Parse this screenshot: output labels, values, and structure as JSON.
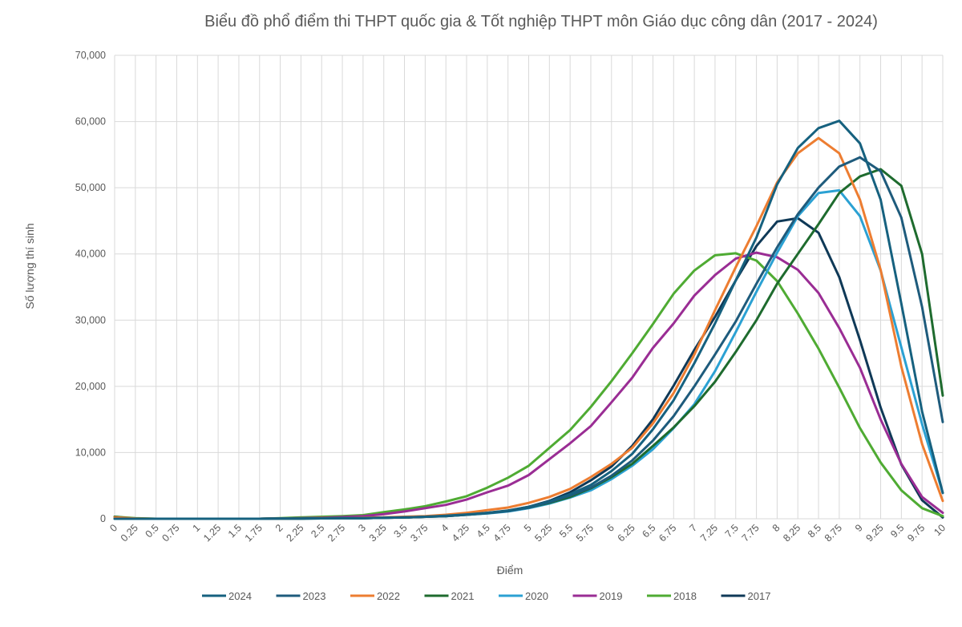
{
  "chart_data": {
    "type": "line",
    "title": "Biểu đồ phổ điểm thi THPT quốc gia & Tốt nghiệp THPT môn Giáo dục công dân (2017 - 2024)",
    "xlabel": "Điểm",
    "ylabel": "Số lượng thí sinh",
    "ylim": [
      0,
      70000
    ],
    "y_ticks": [
      0,
      10000,
      20000,
      30000,
      40000,
      50000,
      60000,
      70000
    ],
    "y_tick_labels": [
      "0",
      "10,000",
      "20,000",
      "30,000",
      "40,000",
      "50,000",
      "60,000",
      "70,000"
    ],
    "grid": true,
    "legend_position": "bottom",
    "categories": [
      "0",
      "0.25",
      "0.5",
      "0.75",
      "1",
      "1.25",
      "1.5",
      "1.75",
      "2",
      "2.25",
      "2.5",
      "2.75",
      "3",
      "3.25",
      "3.5",
      "3.75",
      "4",
      "4.25",
      "4.5",
      "4.75",
      "5",
      "5.25",
      "5.5",
      "5.75",
      "6",
      "6.25",
      "6.5",
      "6.75",
      "7",
      "7.25",
      "7.5",
      "7.75",
      "8",
      "8.25",
      "8.5",
      "8.75",
      "9",
      "9.25",
      "9.5",
      "9.75",
      "10"
    ],
    "series": [
      {
        "name": "2024",
        "color": "#16617f",
        "values": [
          0,
          0,
          0,
          0,
          0,
          0,
          0,
          0,
          20,
          40,
          60,
          80,
          100,
          150,
          200,
          300,
          450,
          650,
          900,
          1200,
          1800,
          2600,
          3700,
          5100,
          7200,
          9800,
          13500,
          17900,
          23500,
          29500,
          36000,
          42500,
          50500,
          56000,
          59000,
          60100,
          56700,
          48200,
          32500,
          16200,
          3900
        ]
      },
      {
        "name": "2023",
        "color": "#1e5b7c",
        "values": [
          0,
          0,
          0,
          0,
          0,
          0,
          0,
          0,
          20,
          40,
          60,
          80,
          100,
          150,
          200,
          300,
          400,
          600,
          850,
          1150,
          1700,
          2500,
          3500,
          4700,
          6500,
          8800,
          11800,
          15500,
          20000,
          24800,
          29800,
          35500,
          41000,
          46000,
          50000,
          53200,
          54600,
          52500,
          45500,
          32000,
          14600
        ]
      },
      {
        "name": "2022",
        "color": "#ed7d31",
        "values": [
          200,
          50,
          0,
          0,
          0,
          0,
          0,
          0,
          20,
          50,
          80,
          100,
          150,
          200,
          300,
          400,
          600,
          900,
          1300,
          1700,
          2400,
          3300,
          4500,
          6300,
          8300,
          10700,
          14400,
          19000,
          24800,
          31500,
          38000,
          44200,
          50800,
          55200,
          57500,
          55200,
          48200,
          37600,
          23000,
          11300,
          2700
        ]
      },
      {
        "name": "2021",
        "color": "#1e6b2e",
        "values": [
          300,
          0,
          0,
          0,
          0,
          0,
          0,
          0,
          20,
          40,
          60,
          80,
          100,
          150,
          200,
          300,
          400,
          600,
          850,
          1200,
          1700,
          2400,
          3300,
          4600,
          6300,
          8300,
          11000,
          13800,
          17000,
          20700,
          25200,
          30000,
          35500,
          40000,
          44500,
          49200,
          51700,
          52800,
          50300,
          40000,
          18600
        ]
      },
      {
        "name": "2020",
        "color": "#2ba1d3",
        "values": [
          200,
          0,
          0,
          0,
          0,
          0,
          0,
          0,
          20,
          40,
          60,
          80,
          100,
          150,
          200,
          300,
          400,
          600,
          800,
          1100,
          1600,
          2300,
          3200,
          4300,
          6000,
          8000,
          10500,
          13700,
          17300,
          22300,
          28200,
          34300,
          40200,
          45700,
          49200,
          49600,
          45700,
          37500,
          25900,
          14300,
          3900
        ]
      },
      {
        "name": "2019",
        "color": "#9a2d94",
        "values": [
          100,
          0,
          0,
          0,
          0,
          0,
          0,
          0,
          50,
          100,
          150,
          250,
          400,
          700,
          1100,
          1600,
          2100,
          2900,
          4000,
          5000,
          6600,
          9000,
          11400,
          14000,
          17600,
          21300,
          25800,
          29500,
          33700,
          36800,
          39300,
          40200,
          39500,
          37600,
          34100,
          28800,
          22800,
          15000,
          8300,
          3300,
          900
        ]
      },
      {
        "name": "2018",
        "color": "#4fab33",
        "values": [
          300,
          100,
          0,
          0,
          0,
          0,
          0,
          0,
          100,
          200,
          300,
          400,
          550,
          1000,
          1400,
          1900,
          2600,
          3400,
          4700,
          6200,
          8000,
          10700,
          13400,
          16900,
          20800,
          25000,
          29400,
          34000,
          37500,
          39800,
          40100,
          39000,
          35900,
          31000,
          25700,
          19800,
          13700,
          8500,
          4300,
          1600,
          400
        ]
      },
      {
        "name": "2017",
        "color": "#0f3957",
        "values": [
          100,
          0,
          0,
          0,
          0,
          0,
          0,
          0,
          20,
          40,
          60,
          80,
          100,
          150,
          200,
          300,
          450,
          650,
          900,
          1250,
          1800,
          2700,
          4000,
          5800,
          7900,
          11000,
          15000,
          20100,
          25500,
          30500,
          36000,
          41200,
          44900,
          45400,
          43200,
          36500,
          27000,
          16800,
          8200,
          2800,
          200
        ]
      }
    ]
  }
}
